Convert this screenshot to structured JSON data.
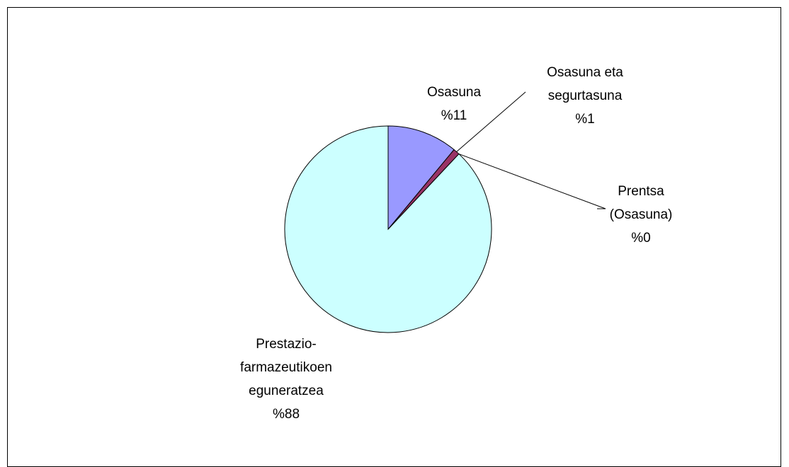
{
  "chart_data": {
    "type": "pie",
    "categories": [
      "Osasuna",
      "Osasuna eta segurtasuna",
      "Prentsa (Osasuna)",
      "Prestazio-farmazeutikoen eguneratzea"
    ],
    "values": [
      11,
      1,
      0,
      88
    ],
    "value_labels": [
      "%11",
      "%1",
      "%0",
      "%88"
    ],
    "colors": [
      "#9999ff",
      "#993366",
      "#ffffcc",
      "#ccffff"
    ]
  }
}
